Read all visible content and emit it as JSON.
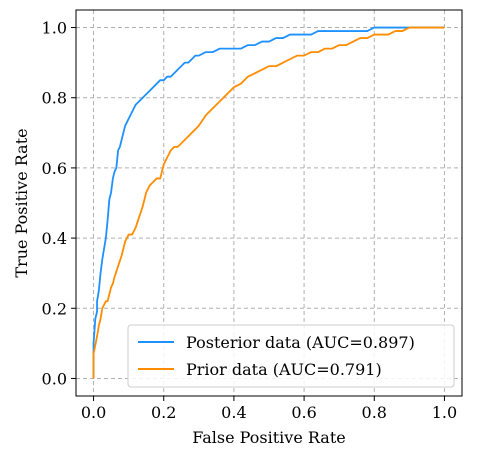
{
  "chart_data": {
    "type": "line",
    "title": "",
    "xlabel": "False Positive Rate",
    "ylabel": "True Positive Rate",
    "xlim": [
      -0.05,
      1.05
    ],
    "ylim": [
      -0.05,
      1.05
    ],
    "xticks": [
      "0.0",
      "0.2",
      "0.4",
      "0.6",
      "0.8",
      "1.0"
    ],
    "yticks": [
      "0.0",
      "0.2",
      "0.4",
      "0.6",
      "0.8",
      "1.0"
    ],
    "grid": true,
    "legend_position": "bottom-right",
    "series": [
      {
        "name": "Posterior data (AUC=0.897)",
        "color": "#1e90ff",
        "x": [
          0.0,
          0.0,
          0.005,
          0.01,
          0.01,
          0.015,
          0.02,
          0.025,
          0.03,
          0.035,
          0.04,
          0.045,
          0.05,
          0.055,
          0.06,
          0.065,
          0.07,
          0.075,
          0.08,
          0.085,
          0.09,
          0.095,
          0.1,
          0.105,
          0.11,
          0.12,
          0.13,
          0.14,
          0.15,
          0.16,
          0.17,
          0.18,
          0.19,
          0.2,
          0.21,
          0.22,
          0.23,
          0.24,
          0.25,
          0.26,
          0.27,
          0.28,
          0.29,
          0.3,
          0.32,
          0.34,
          0.36,
          0.38,
          0.4,
          0.42,
          0.44,
          0.46,
          0.48,
          0.5,
          0.52,
          0.54,
          0.56,
          0.58,
          0.6,
          0.62,
          0.64,
          0.66,
          0.68,
          0.7,
          0.72,
          0.74,
          0.76,
          0.78,
          0.8,
          0.82,
          0.84,
          0.86,
          0.88,
          0.9,
          0.95,
          1.0
        ],
        "y": [
          0.0,
          0.1,
          0.17,
          0.19,
          0.22,
          0.25,
          0.3,
          0.34,
          0.37,
          0.4,
          0.45,
          0.51,
          0.53,
          0.57,
          0.59,
          0.6,
          0.65,
          0.66,
          0.68,
          0.7,
          0.72,
          0.73,
          0.74,
          0.75,
          0.76,
          0.78,
          0.79,
          0.8,
          0.81,
          0.82,
          0.83,
          0.84,
          0.85,
          0.85,
          0.86,
          0.86,
          0.87,
          0.88,
          0.89,
          0.9,
          0.9,
          0.91,
          0.92,
          0.92,
          0.93,
          0.93,
          0.94,
          0.94,
          0.94,
          0.94,
          0.95,
          0.95,
          0.96,
          0.96,
          0.97,
          0.97,
          0.98,
          0.98,
          0.98,
          0.98,
          0.99,
          0.99,
          0.99,
          0.99,
          0.99,
          0.99,
          0.99,
          0.99,
          1.0,
          1.0,
          1.0,
          1.0,
          1.0,
          1.0,
          1.0,
          1.0
        ]
      },
      {
        "name": "Prior data (AUC=0.791)",
        "color": "#ff8c00",
        "x": [
          0.0,
          0.0,
          0.01,
          0.015,
          0.02,
          0.025,
          0.03,
          0.035,
          0.04,
          0.05,
          0.055,
          0.06,
          0.07,
          0.08,
          0.09,
          0.1,
          0.11,
          0.12,
          0.13,
          0.14,
          0.15,
          0.16,
          0.17,
          0.18,
          0.19,
          0.2,
          0.21,
          0.22,
          0.23,
          0.24,
          0.25,
          0.26,
          0.27,
          0.28,
          0.29,
          0.3,
          0.32,
          0.34,
          0.36,
          0.38,
          0.4,
          0.42,
          0.44,
          0.46,
          0.48,
          0.5,
          0.52,
          0.54,
          0.56,
          0.58,
          0.6,
          0.62,
          0.64,
          0.66,
          0.68,
          0.7,
          0.72,
          0.74,
          0.76,
          0.78,
          0.8,
          0.82,
          0.84,
          0.86,
          0.88,
          0.9,
          0.95,
          1.0
        ],
        "y": [
          0.0,
          0.07,
          0.12,
          0.15,
          0.17,
          0.2,
          0.21,
          0.22,
          0.22,
          0.26,
          0.27,
          0.29,
          0.32,
          0.35,
          0.39,
          0.41,
          0.41,
          0.43,
          0.46,
          0.49,
          0.53,
          0.55,
          0.56,
          0.57,
          0.57,
          0.61,
          0.63,
          0.65,
          0.66,
          0.66,
          0.67,
          0.68,
          0.69,
          0.7,
          0.71,
          0.72,
          0.75,
          0.77,
          0.79,
          0.81,
          0.83,
          0.84,
          0.86,
          0.87,
          0.88,
          0.89,
          0.89,
          0.9,
          0.91,
          0.92,
          0.92,
          0.93,
          0.93,
          0.94,
          0.94,
          0.95,
          0.95,
          0.96,
          0.97,
          0.97,
          0.98,
          0.98,
          0.98,
          0.99,
          0.99,
          1.0,
          1.0,
          1.0
        ]
      }
    ]
  }
}
